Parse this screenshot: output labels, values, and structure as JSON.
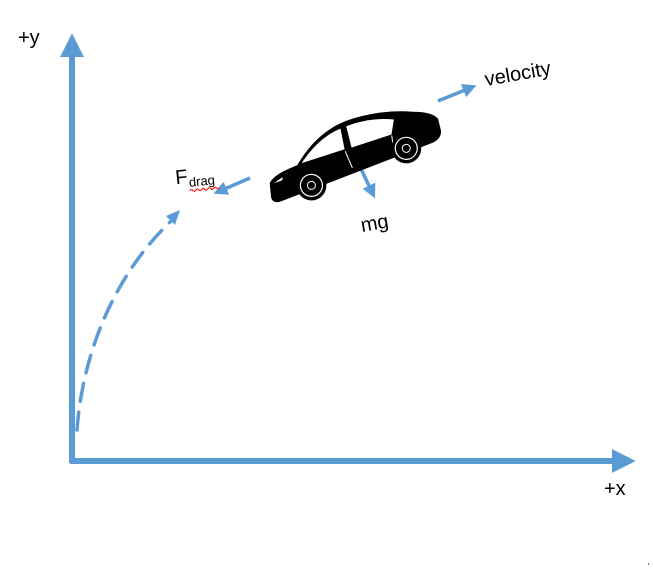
{
  "axes": {
    "y_label": "+y",
    "x_label": "+x"
  },
  "forces": {
    "velocity": "velocity",
    "gravity": "mg",
    "drag_main": "F",
    "drag_sub": "drag"
  },
  "icons": {
    "vehicle": "car-icon"
  },
  "colors": {
    "arrow": "#5b9bd5",
    "car": "#000000",
    "text": "#000000",
    "spellcheck_underline": "#ff0000"
  }
}
